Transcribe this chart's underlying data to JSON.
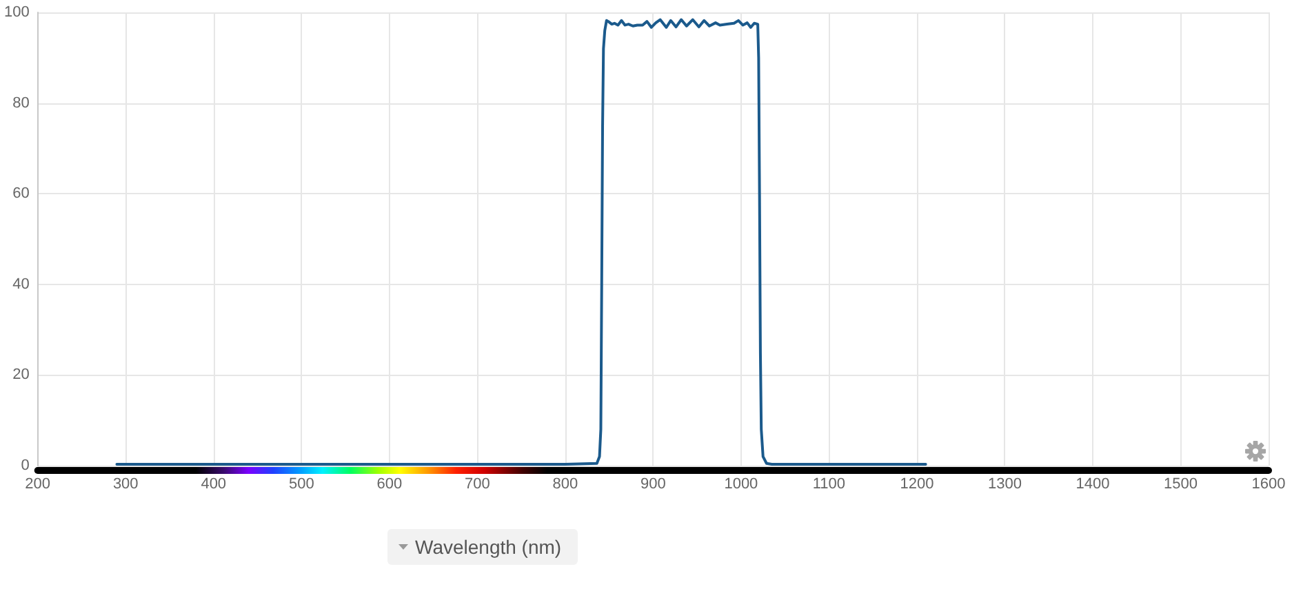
{
  "chart_data": {
    "type": "line",
    "xlabel": "Wavelength (nm)",
    "series": [
      {
        "color": "#1b5a8c",
        "x": [
          290,
          800,
          836,
          839,
          840.5,
          841.5,
          842.5,
          843.5,
          845,
          847,
          849,
          853,
          856,
          860,
          864,
          868,
          872,
          877,
          882,
          888,
          893,
          898,
          903,
          908,
          915,
          920,
          926,
          932,
          938,
          945,
          952,
          958,
          964,
          971,
          976,
          984,
          992,
          997,
          1002,
          1007,
          1011,
          1015,
          1019,
          1020,
          1021,
          1022,
          1023,
          1025,
          1029,
          1035,
          1210
        ],
        "values": [
          0.3,
          0.3,
          0.5,
          2,
          8,
          40,
          75,
          92,
          96,
          98.2,
          98,
          97.4,
          97.6,
          97.2,
          98.2,
          97.2,
          97.4,
          97,
          97.2,
          97.2,
          98,
          96.7,
          97.7,
          98.4,
          96.7,
          98.2,
          96.8,
          98.4,
          97,
          98.4,
          96.8,
          98.2,
          97,
          97.7,
          97.2,
          97.4,
          97.6,
          98.2,
          97.2,
          97.7,
          96.7,
          97.6,
          97.4,
          90,
          60,
          25,
          8,
          2,
          0.5,
          0.3,
          0.3
        ]
      }
    ],
    "xlim": [
      200,
      1600
    ],
    "xticks": [
      200,
      300,
      400,
      500,
      600,
      700,
      800,
      900,
      1000,
      1100,
      1200,
      1300,
      1400,
      1500,
      1600
    ],
    "ylim": [
      0,
      100
    ],
    "yticks": [
      0,
      20,
      40,
      60,
      80,
      100
    ],
    "grid": true,
    "marker": "none",
    "line_style": "solid"
  }
}
